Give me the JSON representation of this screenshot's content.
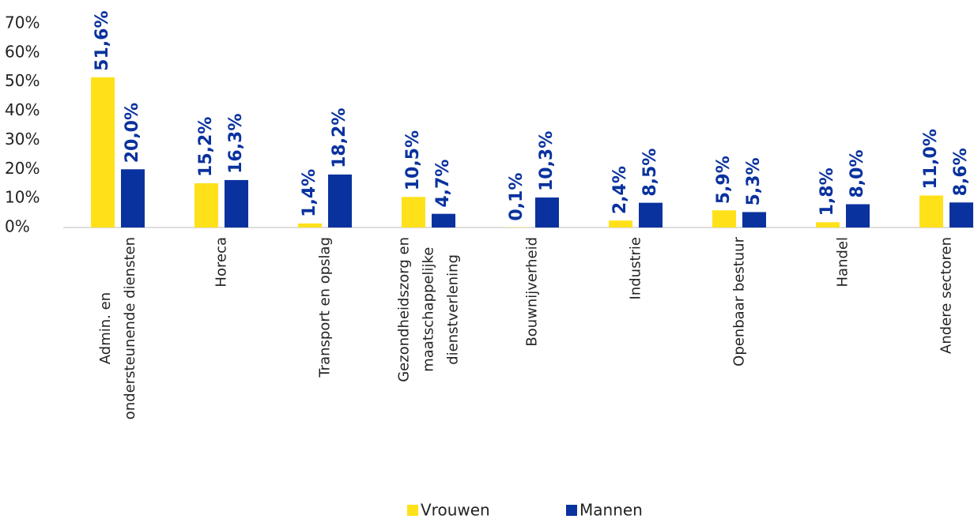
{
  "chart_data": {
    "type": "bar",
    "categories": [
      "Admin. en\nondersteunende diensten",
      "Horeca",
      "Transport en opslag",
      "Gezondheidszorg en\nmaatschappelijke\ndienstverlening",
      "Bouwnijverheid",
      "Industrie",
      "Openbaar bestuur",
      "Handel",
      "Andere sectoren"
    ],
    "series": [
      {
        "name": "Vrouwen",
        "color": "#FFE11A",
        "values": [
          51.6,
          15.2,
          1.4,
          10.5,
          0.1,
          2.4,
          5.9,
          1.8,
          11.0
        ],
        "value_labels": [
          "51,6%",
          "15,2%",
          "1,4%",
          "10,5%",
          "0,1%",
          "2,4%",
          "5,9%",
          "1,8%",
          "11,0%"
        ]
      },
      {
        "name": "Mannen",
        "color": "#0A329E",
        "values": [
          20.0,
          16.3,
          18.2,
          4.7,
          10.3,
          8.5,
          5.3,
          8.0,
          8.6
        ],
        "value_labels": [
          "20,0%",
          "16,3%",
          "18,2%",
          "4,7%",
          "10,3%",
          "8,5%",
          "5,3%",
          "8,0%",
          "8,6%"
        ]
      }
    ],
    "label_color": "#0A329E",
    "ylim": [
      0,
      70
    ],
    "yticks": [
      {
        "value": 0,
        "label": "0%"
      },
      {
        "value": 10,
        "label": "10%"
      },
      {
        "value": 20,
        "label": "20%"
      },
      {
        "value": 30,
        "label": "30%"
      },
      {
        "value": 40,
        "label": "40%"
      },
      {
        "value": 50,
        "label": "50%"
      },
      {
        "value": 60,
        "label": "60%"
      },
      {
        "value": 70,
        "label": "70%"
      }
    ],
    "grid": false,
    "legend": "bottom"
  }
}
